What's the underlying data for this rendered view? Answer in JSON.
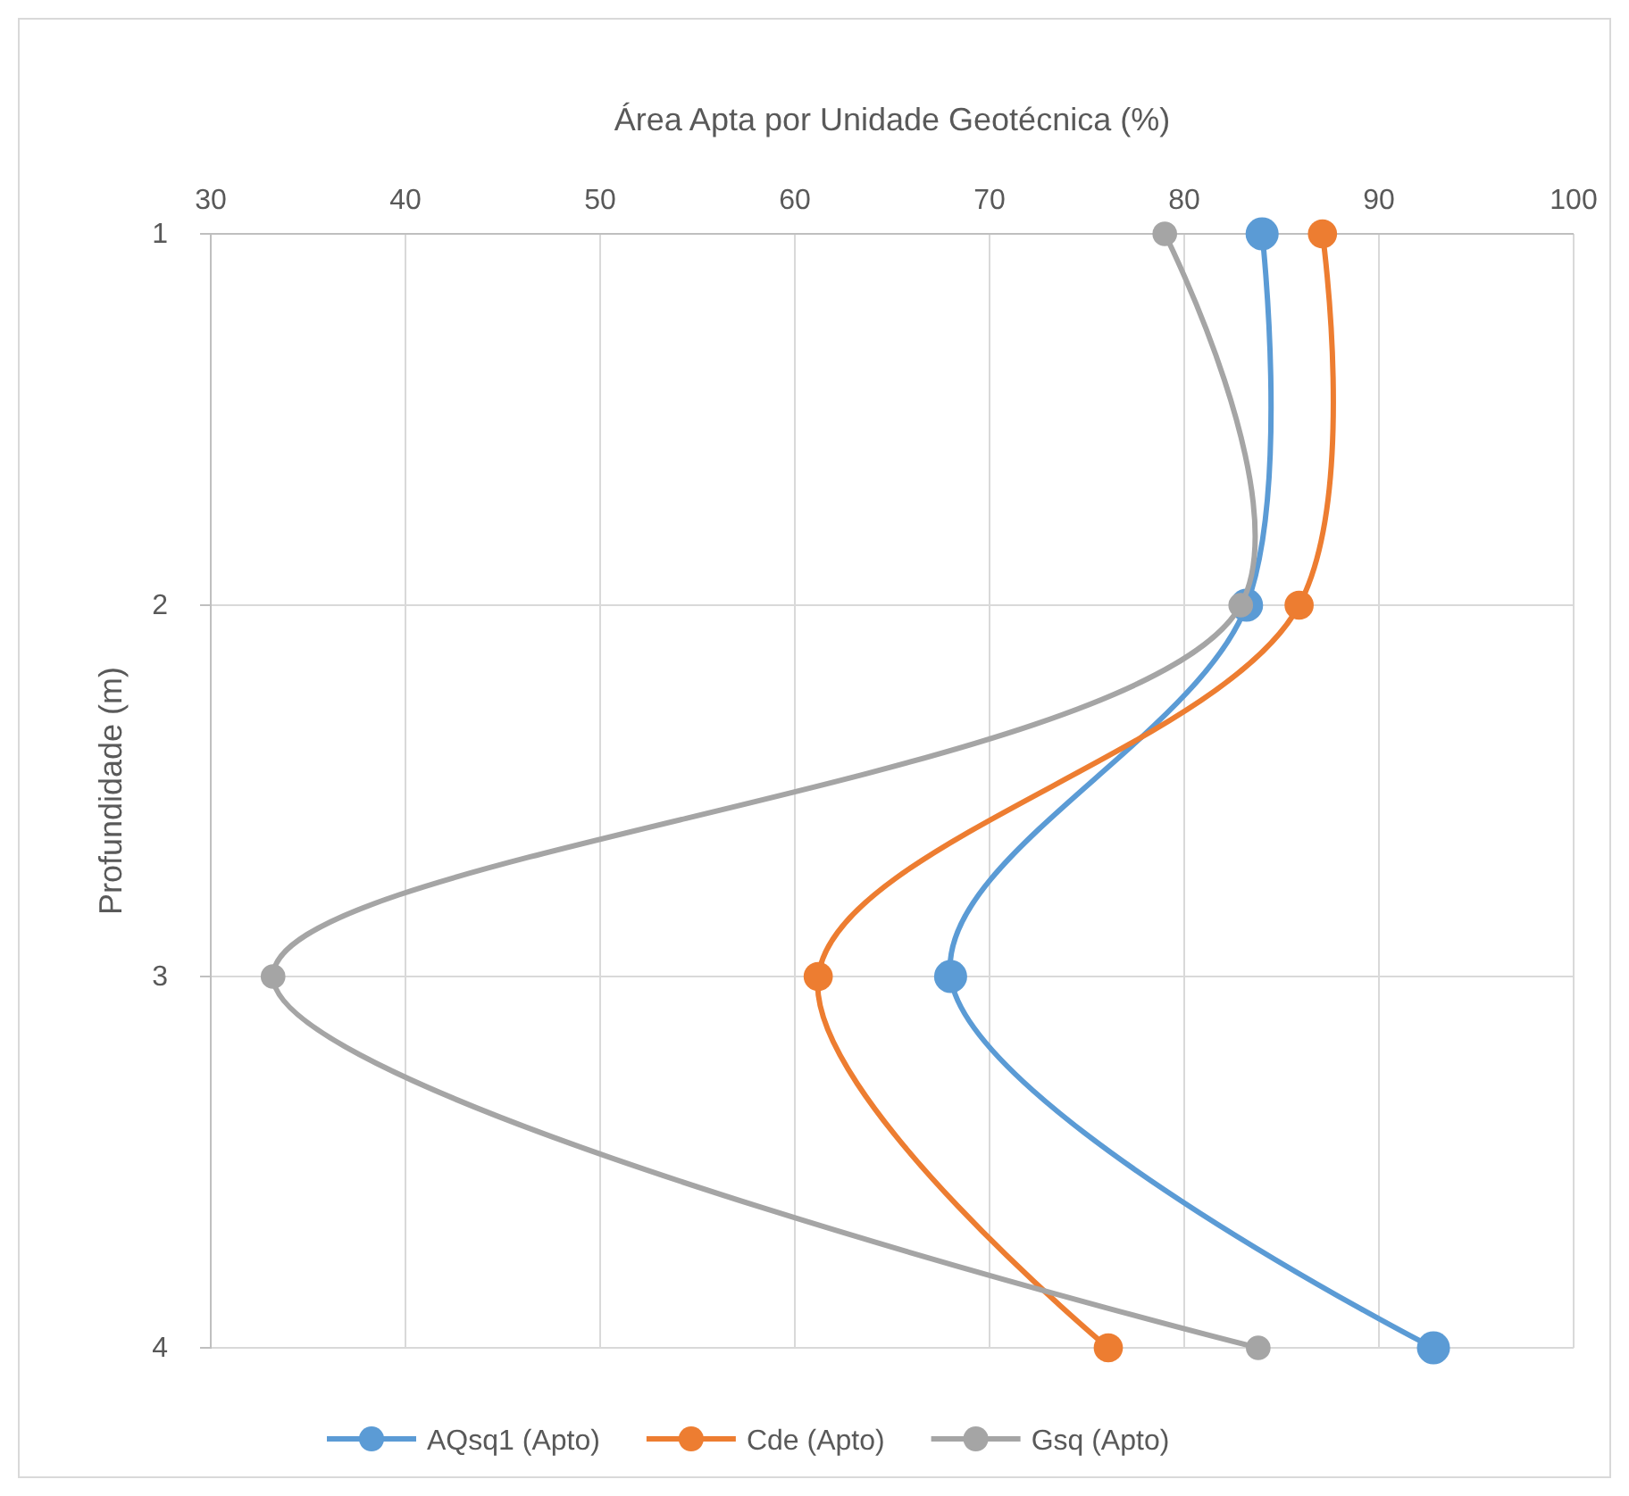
{
  "chart_data": {
    "type": "line",
    "xlabel": "Área Apta por Unidade Geotécnica (%)",
    "ylabel": "Profundidade (m)",
    "xlim": [
      30,
      100
    ],
    "xticks": [
      30,
      40,
      50,
      60,
      70,
      80,
      90,
      100
    ],
    "ylim": [
      4,
      1
    ],
    "yticks": [
      1,
      2,
      3,
      4
    ],
    "grid": true,
    "marker": "circle",
    "legend": "bottom",
    "series": [
      {
        "name": "AQsq1 (Apto)",
        "color": "#5b9bd5",
        "x": [
          84,
          83.2,
          68,
          92.8
        ],
        "values": [
          1,
          2,
          3,
          4
        ]
      },
      {
        "name": "Cde (Apto)",
        "color": "#ed7d31",
        "x": [
          87.1,
          85.9,
          61.2,
          76.1
        ],
        "values": [
          1,
          2,
          3,
          4
        ]
      },
      {
        "name": "Gsq (Apto)",
        "color": "#a5a5a5",
        "x": [
          79,
          82.9,
          33.2,
          83.8
        ],
        "values": [
          1,
          2,
          3,
          4
        ]
      }
    ]
  }
}
